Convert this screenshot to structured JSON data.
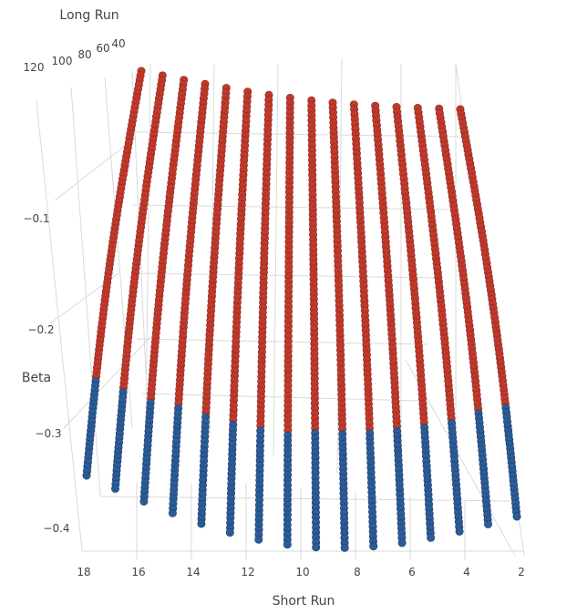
{
  "chart_data": {
    "type": "scatter3d",
    "axes": {
      "x": {
        "label": "Short Run",
        "ticks": [
          18,
          16,
          14,
          12,
          10,
          8,
          6,
          4,
          2
        ]
      },
      "y": {
        "label": "Long Run",
        "ticks": [
          120,
          100,
          80,
          60,
          40
        ]
      },
      "z": {
        "label": "Beta",
        "ticks": [
          "−0.1",
          "−0.2",
          "−0.3",
          "−0.4"
        ]
      }
    },
    "series_colors": {
      "upper": "#c0392b",
      "lower": "#2b5c97"
    },
    "short_run_values": [
      18,
      17,
      16,
      15,
      14,
      13,
      12,
      11,
      10,
      9,
      8,
      7,
      6,
      5,
      4,
      3
    ],
    "long_run_range": [
      40,
      130
    ],
    "beta_range": [
      -0.4,
      -0.05
    ]
  }
}
